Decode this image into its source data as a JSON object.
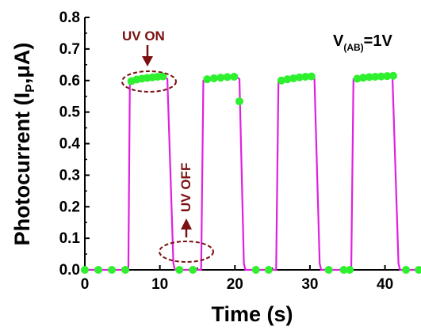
{
  "chart_data": {
    "type": "line",
    "xlabel": "Time (s)",
    "ylabel": "Photocurrent (I",
    "ylabel_sub": "P",
    "ylabel_tail": ",μA)",
    "xlim": [
      0,
      45
    ],
    "ylim": [
      0.0,
      0.8
    ],
    "xticks": [
      0,
      10,
      20,
      30,
      40
    ],
    "yticks": [
      0.0,
      0.1,
      0.2,
      0.3,
      0.4,
      0.5,
      0.6,
      0.7,
      0.8
    ],
    "ytick_labels": [
      "0.0",
      "0.1",
      "0.2",
      "0.3",
      "0.4",
      "0.5",
      "0.6",
      "0.7",
      "0.8"
    ],
    "grid": false,
    "annotations": {
      "uv_on": "UV ON",
      "uv_off": "UV OFF",
      "bias_main": "V",
      "bias_sub": "(AB)",
      "bias_tail": "=1V"
    },
    "series": [
      {
        "style": "line",
        "color": "#e020e0",
        "x": [
          0,
          5.8,
          6.0,
          6.5,
          7.5,
          8.5,
          9.5,
          10.5,
          11.0,
          11.8,
          12.0,
          13.0,
          14.0,
          15.5,
          15.8,
          16.3,
          17.2,
          18.2,
          19.2,
          20.1,
          20.6,
          21.2,
          21.4,
          22.5,
          24.0,
          25.5,
          25.8,
          26.3,
          27.2,
          28.2,
          29.2,
          30.1,
          30.6,
          31.3,
          31.5,
          33.0,
          34.5,
          35.5,
          35.8,
          36.3,
          37.2,
          38.2,
          39.2,
          40.1,
          41.0,
          41.8,
          42.0,
          43.5,
          45
        ],
        "y": [
          0.0,
          0.0,
          0.595,
          0.603,
          0.607,
          0.61,
          0.612,
          0.613,
          0.605,
          0.02,
          0.0,
          0.0,
          0.0,
          0.0,
          0.6,
          0.603,
          0.606,
          0.609,
          0.612,
          0.613,
          0.605,
          0.02,
          0.0,
          0.0,
          0.0,
          0.0,
          0.598,
          0.603,
          0.607,
          0.61,
          0.612,
          0.614,
          0.607,
          0.02,
          0.0,
          0.0,
          0.0,
          0.0,
          0.604,
          0.608,
          0.61,
          0.612,
          0.613,
          0.614,
          0.612,
          0.02,
          0.0,
          0.0,
          0.0
        ]
      },
      {
        "style": "markers",
        "color": "#2ef02e",
        "x": [
          0,
          1.8,
          3.6,
          5.4,
          6.2,
          6.9,
          7.6,
          8.3,
          9.0,
          9.7,
          10.4,
          12.6,
          14.4,
          16.3,
          17.2,
          18.1,
          19.0,
          19.9,
          20.6,
          22.8,
          24.5,
          26.2,
          27.0,
          27.8,
          28.6,
          29.4,
          30.2,
          32.5,
          34.5,
          35.3,
          36.3,
          37.1,
          37.9,
          38.7,
          39.5,
          40.3,
          41.1,
          42.8,
          44.5
        ],
        "y": [
          0.0,
          0.0,
          0.0,
          0.0,
          0.598,
          0.603,
          0.606,
          0.608,
          0.61,
          0.612,
          0.613,
          0.0,
          0.0,
          0.604,
          0.607,
          0.609,
          0.611,
          0.612,
          0.534,
          0.0,
          0.0,
          0.6,
          0.604,
          0.607,
          0.61,
          0.612,
          0.613,
          0.0,
          0.0,
          0.0,
          0.606,
          0.609,
          0.611,
          0.612,
          0.613,
          0.614,
          0.615,
          0.0,
          0.0
        ]
      }
    ]
  }
}
